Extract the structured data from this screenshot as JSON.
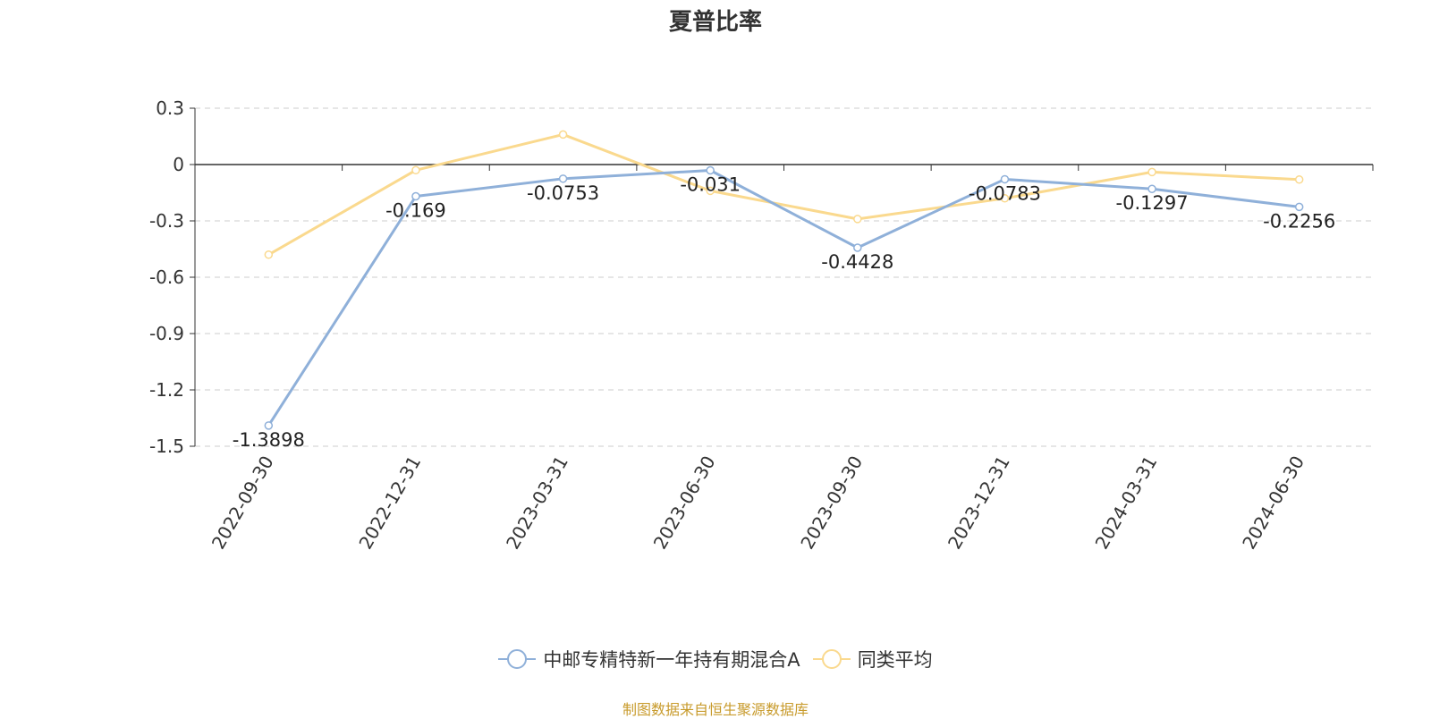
{
  "title": "夏普比率",
  "source": "制图数据来自恒生聚源数据库",
  "colors": {
    "series1": "#8fb0d9",
    "series2": "#fad98e",
    "axis": "#333333",
    "grid": "#cccccc"
  },
  "legend": [
    {
      "label": "中邮专精特新一年持有期混合A",
      "icon": "circle-line-icon"
    },
    {
      "label": "同类平均",
      "icon": "circle-line-icon"
    }
  ],
  "chart_data": {
    "type": "line",
    "title": "夏普比率",
    "x": [
      "2022-09-30",
      "2022-12-31",
      "2023-03-31",
      "2023-06-30",
      "2023-09-30",
      "2023-12-31",
      "2024-03-31",
      "2024-06-30"
    ],
    "series": [
      {
        "name": "中邮专精特新一年持有期混合A",
        "values": [
          -1.3898,
          -0.169,
          -0.0753,
          -0.031,
          -0.4428,
          -0.0783,
          -0.1297,
          -0.2256
        ],
        "labels": [
          "-1.3898",
          "-0.169",
          "-0.0753",
          "-0.031",
          "-0.4428",
          "-0.0783",
          "-0.1297",
          "-0.2256"
        ]
      },
      {
        "name": "同类平均",
        "values": [
          -0.48,
          -0.03,
          0.16,
          -0.14,
          -0.29,
          -0.18,
          -0.04,
          -0.08
        ]
      }
    ],
    "yticks": [
      "0.3",
      "0",
      "-0.3",
      "-0.6",
      "-0.9",
      "-1.2",
      "-1.5"
    ],
    "ylim": [
      -1.5,
      0.3
    ],
    "grid": true,
    "legend_position": "bottom"
  }
}
